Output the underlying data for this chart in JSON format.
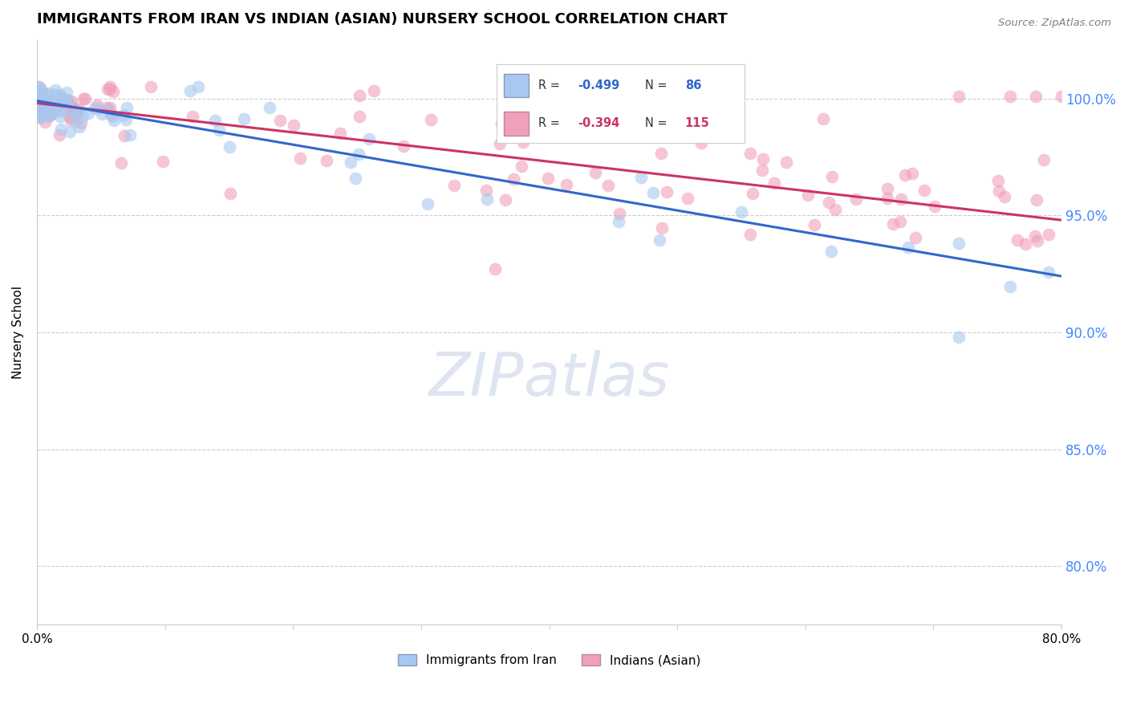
{
  "title": "IMMIGRANTS FROM IRAN VS INDIAN (ASIAN) NURSERY SCHOOL CORRELATION CHART",
  "source": "Source: ZipAtlas.com",
  "ylabel": "Nursery School",
  "series": [
    {
      "label": "Immigrants from Iran",
      "R": -0.499,
      "N": 86,
      "color_scatter": "#a8c8f0",
      "color_line": "#3366cc",
      "trendline_x": [
        0.0,
        0.8
      ],
      "trendline_y": [
        0.999,
        0.924
      ]
    },
    {
      "label": "Indians (Asian)",
      "R": -0.394,
      "N": 115,
      "color_scatter": "#f0a0b8",
      "color_line": "#cc3366",
      "trendline_x": [
        0.0,
        0.8
      ],
      "trendline_y": [
        0.998,
        0.948
      ]
    }
  ],
  "ytick_labels": [
    "80.0%",
    "85.0%",
    "90.0%",
    "95.0%",
    "100.0%"
  ],
  "ytick_values": [
    0.8,
    0.85,
    0.9,
    0.95,
    1.0
  ],
  "ylim": [
    0.775,
    1.025
  ],
  "xlim": [
    0.0,
    0.8
  ],
  "background_color": "#ffffff",
  "grid_color": "#cccccc",
  "right_axis_color": "#4488ff",
  "title_fontsize": 13,
  "axis_label_fontsize": 11
}
